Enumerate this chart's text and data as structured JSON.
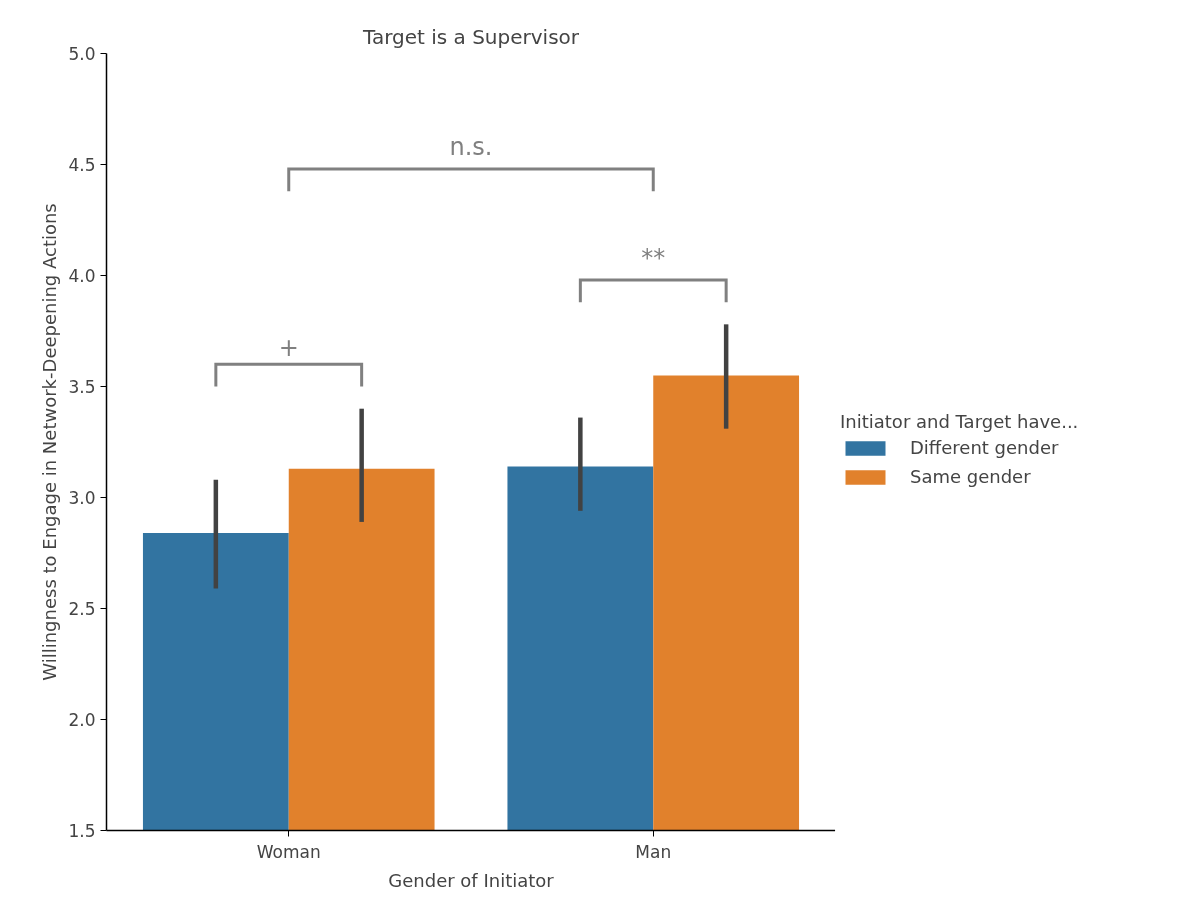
{
  "chart_data": {
    "type": "bar",
    "title": "Target is a Supervisor",
    "xlabel": "Gender of Initiator",
    "ylabel": "Willingness to Engage in Network-Deepening Actions",
    "legend_title": "Initiator and Target have...",
    "categories": [
      "Woman",
      "Man"
    ],
    "series": [
      {
        "name": "Different gender",
        "color": "#3274a1",
        "values": [
          2.84,
          3.14
        ],
        "errors": [
          [
            2.59,
            3.08
          ],
          [
            2.94,
            3.36
          ]
        ]
      },
      {
        "name": "Same gender",
        "color": "#e1812c",
        "values": [
          3.13,
          3.55
        ],
        "errors": [
          [
            2.89,
            3.4
          ],
          [
            3.31,
            3.78
          ]
        ]
      }
    ],
    "ylim": [
      1.5,
      5.0
    ],
    "yticks": [
      1.5,
      {
        "value": 2,
        "label": "2.0"
      },
      2.5,
      {
        "value": 3,
        "label": "3.0"
      },
      3.5,
      {
        "value": 4,
        "label": "4.0"
      },
      4.5,
      {
        "value": 5,
        "label": "5.0"
      }
    ],
    "annotations": [
      "+",
      "**",
      "n.s."
    ],
    "grid": false,
    "legend": "right"
  }
}
